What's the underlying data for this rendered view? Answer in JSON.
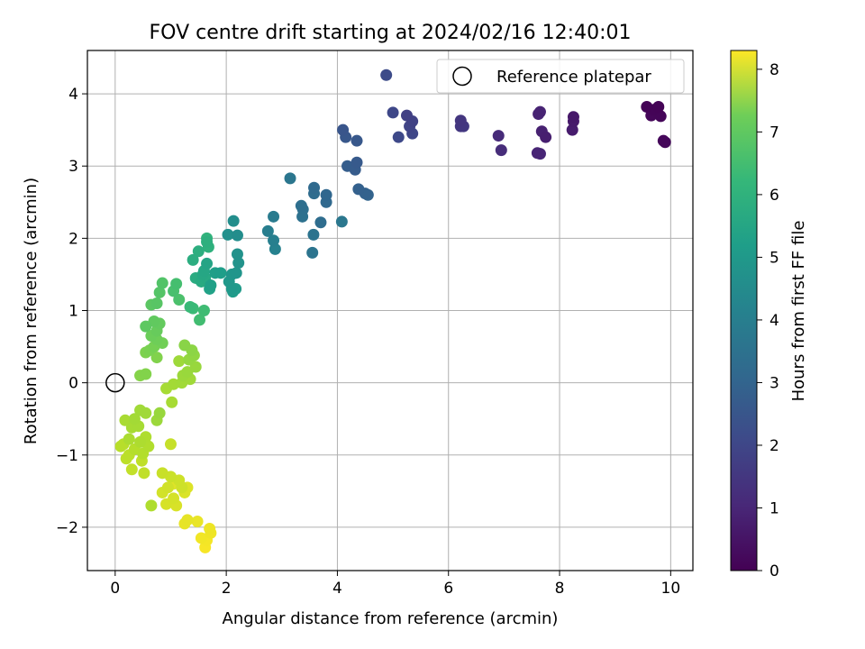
{
  "chart_data": {
    "type": "scatter",
    "title": "FOV centre drift starting at 2024/02/16 12:40:01",
    "xlabel": "Angular distance from reference (arcmin)",
    "ylabel": "Rotation from reference (arcmin)",
    "xlim": [
      -0.5,
      10.4
    ],
    "ylim": [
      -2.6,
      4.6
    ],
    "x_ticks": [
      0,
      2,
      4,
      6,
      8,
      10
    ],
    "x_tick_labels": [
      "0",
      "2",
      "4",
      "6",
      "8",
      "10"
    ],
    "y_ticks": [
      -2,
      -1,
      0,
      1,
      2,
      3,
      4
    ],
    "y_tick_labels": [
      "−2",
      "−1",
      "0",
      "1",
      "2",
      "3",
      "4"
    ],
    "grid": true,
    "legend": {
      "position": "top-right",
      "entries": [
        "Reference platepar"
      ]
    },
    "reference_point": {
      "name": "Reference platepar",
      "x": 0,
      "y": 0
    },
    "colorbar": {
      "label": "Hours from first FF file",
      "colormap": "viridis",
      "range": [
        0,
        8.3
      ],
      "ticks": [
        0,
        1,
        2,
        3,
        4,
        5,
        6,
        7,
        8
      ],
      "tick_labels": [
        "0",
        "1",
        "2",
        "3",
        "4",
        "5",
        "6",
        "7",
        "8"
      ]
    },
    "points": [
      [
        9.57,
        3.82,
        0.05
      ],
      [
        9.7,
        3.78,
        0.07
      ],
      [
        9.78,
        3.82,
        0.05
      ],
      [
        9.82,
        3.69,
        0.1
      ],
      [
        9.65,
        3.7,
        0.12
      ],
      [
        9.87,
        3.35,
        0.15
      ],
      [
        9.9,
        3.33,
        0.17
      ],
      [
        8.25,
        3.68,
        0.55
      ],
      [
        8.25,
        3.62,
        0.6
      ],
      [
        8.23,
        3.5,
        0.65
      ],
      [
        7.75,
        3.4,
        0.7
      ],
      [
        7.68,
        3.48,
        0.75
      ],
      [
        7.62,
        3.72,
        0.8
      ],
      [
        7.65,
        3.75,
        0.82
      ],
      [
        7.6,
        3.18,
        0.85
      ],
      [
        7.65,
        3.17,
        0.88
      ],
      [
        6.9,
        3.42,
        1.0
      ],
      [
        6.95,
        3.22,
        1.05
      ],
      [
        6.22,
        3.63,
        1.3
      ],
      [
        6.22,
        3.55,
        1.35
      ],
      [
        6.27,
        3.55,
        1.4
      ],
      [
        5.25,
        3.7,
        1.6
      ],
      [
        5.35,
        3.62,
        1.65
      ],
      [
        5.3,
        3.55,
        1.7
      ],
      [
        5.35,
        3.45,
        1.75
      ],
      [
        5.0,
        3.74,
        1.8
      ],
      [
        5.1,
        3.4,
        1.85
      ],
      [
        4.88,
        4.26,
        1.9
      ],
      [
        4.1,
        3.5,
        2.2
      ],
      [
        4.15,
        3.4,
        2.25
      ],
      [
        4.35,
        3.35,
        2.3
      ],
      [
        4.35,
        3.05,
        2.35
      ],
      [
        4.32,
        2.95,
        2.4
      ],
      [
        4.18,
        3.0,
        2.45
      ],
      [
        4.38,
        2.68,
        2.55
      ],
      [
        4.5,
        2.62,
        2.6
      ],
      [
        4.55,
        2.6,
        2.65
      ],
      [
        3.8,
        2.6,
        2.75
      ],
      [
        3.8,
        2.5,
        2.8
      ],
      [
        3.58,
        2.7,
        2.85
      ],
      [
        3.58,
        2.62,
        2.9
      ],
      [
        3.7,
        2.22,
        2.95
      ],
      [
        3.35,
        2.45,
        3.0
      ],
      [
        3.38,
        2.4,
        3.05
      ],
      [
        3.37,
        2.3,
        3.1
      ],
      [
        3.57,
        2.05,
        3.15
      ],
      [
        3.55,
        1.8,
        3.2
      ],
      [
        3.15,
        2.83,
        3.25
      ],
      [
        4.08,
        2.23,
        3.3
      ],
      [
        2.85,
        2.3,
        3.45
      ],
      [
        2.75,
        2.1,
        3.55
      ],
      [
        2.85,
        1.97,
        3.6
      ],
      [
        2.88,
        1.85,
        3.65
      ],
      [
        2.2,
        2.04,
        4.05
      ],
      [
        2.13,
        2.24,
        4.1
      ],
      [
        2.03,
        2.05,
        4.15
      ],
      [
        2.2,
        1.78,
        4.2
      ],
      [
        2.22,
        1.66,
        4.25
      ],
      [
        2.18,
        1.52,
        4.3
      ],
      [
        2.1,
        1.5,
        4.35
      ],
      [
        2.05,
        1.4,
        4.4
      ],
      [
        2.1,
        1.3,
        4.45
      ],
      [
        2.17,
        1.3,
        4.5
      ],
      [
        2.12,
        1.26,
        4.55
      ],
      [
        1.9,
        1.52,
        4.6
      ],
      [
        1.8,
        1.52,
        4.65
      ],
      [
        1.72,
        1.35,
        4.7
      ],
      [
        1.7,
        1.3,
        4.75
      ],
      [
        1.65,
        1.65,
        4.85
      ],
      [
        1.6,
        1.55,
        4.9
      ],
      [
        1.58,
        1.5,
        4.95
      ],
      [
        1.62,
        1.45,
        5.0
      ],
      [
        1.55,
        1.4,
        5.05
      ],
      [
        1.45,
        1.45,
        5.1
      ],
      [
        1.4,
        1.7,
        5.15
      ],
      [
        1.5,
        1.82,
        5.2
      ],
      [
        1.65,
        1.95,
        5.25
      ],
      [
        1.68,
        1.88,
        5.3
      ],
      [
        1.65,
        2.0,
        5.35
      ],
      [
        1.35,
        1.05,
        5.6
      ],
      [
        1.4,
        1.03,
        5.65
      ],
      [
        1.6,
        1.0,
        5.7
      ],
      [
        1.52,
        0.87,
        5.75
      ],
      [
        1.1,
        1.37,
        5.8
      ],
      [
        1.05,
        1.27,
        5.85
      ],
      [
        1.15,
        1.15,
        5.9
      ],
      [
        0.85,
        1.38,
        6.0
      ],
      [
        0.8,
        1.25,
        6.05
      ],
      [
        0.75,
        1.1,
        6.1
      ],
      [
        0.65,
        1.08,
        6.15
      ],
      [
        0.55,
        0.78,
        6.2
      ],
      [
        0.7,
        0.85,
        6.25
      ],
      [
        0.8,
        0.82,
        6.3
      ],
      [
        0.75,
        0.72,
        6.35
      ],
      [
        0.65,
        0.65,
        6.4
      ],
      [
        0.75,
        0.6,
        6.45
      ],
      [
        0.85,
        0.55,
        6.5
      ],
      [
        0.7,
        0.5,
        6.55
      ],
      [
        0.62,
        0.45,
        6.6
      ],
      [
        0.55,
        0.42,
        6.65
      ],
      [
        0.75,
        0.35,
        6.7
      ],
      [
        0.55,
        0.12,
        6.72
      ],
      [
        0.45,
        0.1,
        6.75
      ],
      [
        1.25,
        0.52,
        6.8
      ],
      [
        1.38,
        0.45,
        6.85
      ],
      [
        1.42,
        0.38,
        6.9
      ],
      [
        1.33,
        0.32,
        6.95
      ],
      [
        1.45,
        0.22,
        7.0
      ],
      [
        1.3,
        0.15,
        7.02
      ],
      [
        1.22,
        0.1,
        7.05
      ],
      [
        1.15,
        0.3,
        7.08
      ],
      [
        1.35,
        0.05,
        7.1
      ],
      [
        1.2,
        0.0,
        7.12
      ],
      [
        1.05,
        -0.02,
        7.15
      ],
      [
        0.92,
        -0.08,
        7.18
      ],
      [
        1.02,
        -0.27,
        7.2
      ],
      [
        0.8,
        -0.42,
        7.0
      ],
      [
        0.75,
        -0.52,
        7.05
      ],
      [
        0.55,
        -0.42,
        7.1
      ],
      [
        0.45,
        -0.38,
        7.12
      ],
      [
        0.35,
        -0.5,
        7.15
      ],
      [
        0.42,
        -0.6,
        7.18
      ],
      [
        0.3,
        -0.62,
        7.2
      ],
      [
        0.18,
        -0.52,
        7.22
      ],
      [
        0.25,
        -0.78,
        7.25
      ],
      [
        0.45,
        -0.82,
        7.28
      ],
      [
        0.55,
        -0.75,
        7.3
      ],
      [
        0.6,
        -0.88,
        7.32
      ],
      [
        0.5,
        -0.98,
        7.35
      ],
      [
        0.35,
        -0.92,
        7.38
      ],
      [
        0.15,
        -0.85,
        7.4
      ],
      [
        0.1,
        -0.88,
        7.42
      ],
      [
        0.25,
        -1.0,
        7.45
      ],
      [
        0.2,
        -1.05,
        7.48
      ],
      [
        0.48,
        -1.08,
        7.5
      ],
      [
        0.52,
        -1.25,
        7.52
      ],
      [
        0.3,
        -1.2,
        7.55
      ],
      [
        0.65,
        -1.7,
        7.3
      ],
      [
        1.0,
        -0.85,
        7.6
      ],
      [
        0.85,
        -1.25,
        7.62
      ],
      [
        1.0,
        -1.3,
        7.65
      ],
      [
        1.15,
        -1.35,
        7.68
      ],
      [
        1.2,
        -1.45,
        7.7
      ],
      [
        0.95,
        -1.45,
        7.72
      ],
      [
        0.85,
        -1.52,
        7.75
      ],
      [
        1.05,
        -1.6,
        7.78
      ],
      [
        0.92,
        -1.68,
        7.8
      ],
      [
        1.1,
        -1.7,
        7.82
      ],
      [
        1.25,
        -1.52,
        7.85
      ],
      [
        1.3,
        -1.45,
        7.88
      ],
      [
        1.05,
        -1.4,
        7.9
      ],
      [
        1.3,
        -1.9,
        8.0
      ],
      [
        1.25,
        -1.95,
        8.02
      ],
      [
        1.48,
        -1.92,
        8.05
      ],
      [
        1.7,
        -2.02,
        8.1
      ],
      [
        1.72,
        -2.08,
        8.12
      ],
      [
        1.55,
        -2.15,
        8.15
      ],
      [
        1.65,
        -2.18,
        8.18
      ],
      [
        1.62,
        -2.28,
        8.22
      ]
    ]
  }
}
